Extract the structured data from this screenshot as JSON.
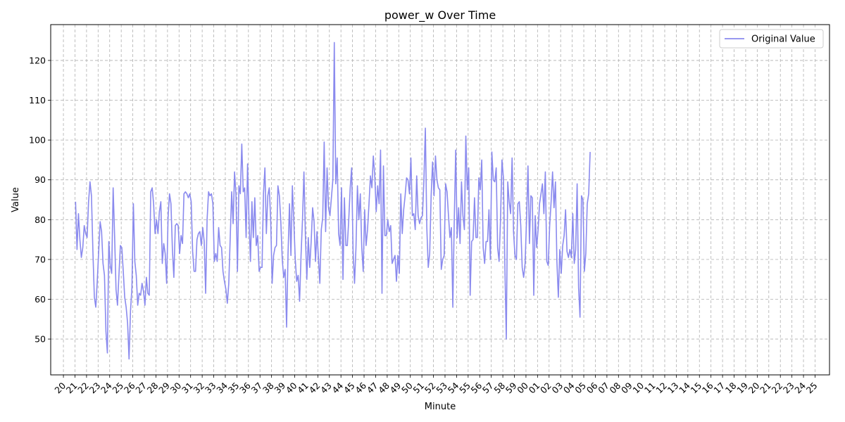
{
  "chart_data": {
    "type": "line",
    "title": "power_w Over Time",
    "xlabel": "Minute",
    "ylabel": "Value",
    "grid": true,
    "legend_position": "top-right",
    "ylim": [
      41,
      129
    ],
    "yticks": [
      50,
      60,
      70,
      80,
      90,
      100,
      110,
      120
    ],
    "xlim": [
      -2.2,
      132.5
    ],
    "xticks": [
      "20",
      "21",
      "22",
      "23",
      "24",
      "25",
      "26",
      "27",
      "28",
      "29",
      "30",
      "31",
      "32",
      "33",
      "34",
      "35",
      "36",
      "37",
      "38",
      "39",
      "40",
      "41",
      "42",
      "43",
      "44",
      "45",
      "46",
      "47",
      "48",
      "49",
      "50",
      "51",
      "52",
      "53",
      "54",
      "55",
      "56",
      "57",
      "58",
      "59",
      "00",
      "01",
      "02",
      "03",
      "04",
      "05",
      "06",
      "07",
      "08",
      "09",
      "10",
      "11",
      "12",
      "13",
      "14",
      "15",
      "16",
      "17",
      "18",
      "19",
      "20",
      "21",
      "22",
      "23",
      "24",
      "25"
    ],
    "series": [
      {
        "name": "Original Value",
        "color": "#8a8aee",
        "x_start": 2.1,
        "x_step": 0.25,
        "values": [
          84.5,
          72.5,
          81.5,
          75,
          70.5,
          73,
          78.5,
          76.5,
          75.5,
          84.5,
          89.5,
          86,
          72,
          60.5,
          58,
          64.5,
          72,
          79.5,
          77,
          69,
          66,
          52,
          46.5,
          74.5,
          68.5,
          66.5,
          88,
          76,
          62.5,
          58.5,
          66,
          73.5,
          73,
          67,
          60.5,
          58,
          54,
          45,
          57,
          63,
          84,
          69.5,
          66,
          58.5,
          61.5,
          61,
          64,
          62,
          58.5,
          65.5,
          61.5,
          61,
          87,
          88,
          84,
          76.5,
          80,
          76.5,
          82,
          84.5,
          69,
          74,
          71.5,
          64,
          80.5,
          86.5,
          84,
          72.5,
          65.5,
          78.5,
          79,
          78.5,
          71.5,
          76,
          74,
          86.5,
          87,
          86.5,
          85.5,
          86.5,
          84.5,
          72,
          67,
          67,
          75,
          76.5,
          77,
          73.5,
          78,
          74.5,
          61.5,
          80,
          87,
          86,
          86.5,
          84,
          69.5,
          71.5,
          69.5,
          78,
          73.5,
          73,
          67,
          64.5,
          62.5,
          59,
          64,
          75.5,
          87,
          79,
          92,
          86,
          67,
          88.5,
          86.5,
          99,
          87,
          88,
          75.5,
          94,
          80,
          69.5,
          84.5,
          75.5,
          85.5,
          73.5,
          76,
          67,
          68,
          68,
          86.5,
          93,
          76.5,
          86,
          88,
          80,
          64,
          71,
          73,
          73.5,
          88.5,
          86,
          79.5,
          70,
          65.5,
          67.5,
          53,
          71.5,
          84,
          71,
          88.5,
          79.5,
          70,
          64.5,
          66,
          59.5,
          71,
          80,
          92,
          76,
          65,
          75.5,
          68,
          74.5,
          83,
          79.5,
          69.5,
          77,
          70.5,
          64,
          77.5,
          80.5,
          99.5,
          77,
          93,
          83,
          81,
          85.5,
          90,
          124.5,
          89,
          95.5,
          76.5,
          73.5,
          88,
          65,
          85.5,
          73.5,
          73.5,
          80,
          88,
          93,
          72,
          64,
          73,
          88.5,
          80,
          86.5,
          73,
          67,
          82.5,
          73.5,
          77.5,
          84,
          91,
          88,
          96,
          91,
          82,
          88.5,
          84,
          97.5,
          61.5,
          93.5,
          76,
          76,
          80,
          77,
          78.5,
          69,
          70,
          71,
          64.5,
          71,
          66.5,
          86.5,
          76.5,
          82.5,
          86,
          90.5,
          90,
          86.5,
          95.5,
          81,
          81.5,
          77.5,
          91,
          81,
          79,
          80.5,
          81,
          90,
          103,
          78,
          68,
          71.5,
          86,
          94.5,
          86,
          96,
          90,
          88,
          87.5,
          67.5,
          70,
          71,
          89,
          87,
          81,
          75.5,
          78,
          58,
          80,
          97.5,
          75.5,
          83,
          74,
          89.5,
          81,
          77.5,
          101,
          87.5,
          93,
          61,
          74.5,
          75,
          85.5,
          75.5,
          75.5,
          90.5,
          87.5,
          95,
          73,
          69,
          74.5,
          74.5,
          82.5,
          70,
          97,
          90,
          89.5,
          93,
          73,
          69.5,
          80,
          95,
          90.5,
          68.5,
          50,
          89.5,
          84.5,
          81.5,
          95.5,
          77,
          71,
          70,
          84,
          84.5,
          78.5,
          68,
          65.5,
          69,
          80,
          93.5,
          74,
          86,
          85.5,
          61,
          81,
          73,
          77.5,
          84,
          86.5,
          89,
          81.5,
          92,
          69.5,
          68.5,
          78.5,
          84.5,
          92,
          83,
          89.5,
          69.5,
          60.5,
          72.5,
          66.5,
          73.5,
          76,
          82.5,
          72,
          70.5,
          72.5,
          70.5,
          81.5,
          69,
          72.5,
          89,
          63,
          55.5,
          86,
          85,
          67,
          71.5,
          84,
          86.5,
          97
        ]
      }
    ]
  }
}
